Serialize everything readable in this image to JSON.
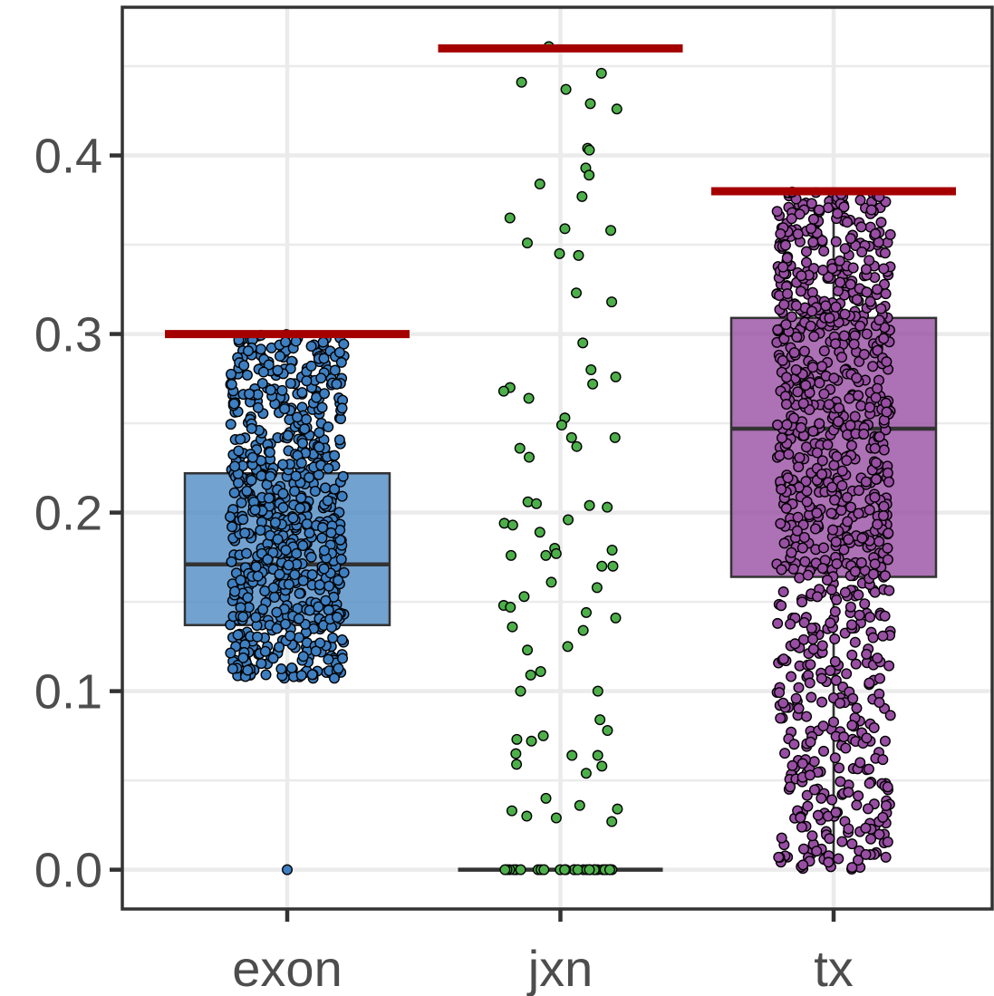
{
  "chart_data": {
    "type": "boxplot",
    "categories": [
      "exon",
      "jxn",
      "tx"
    ],
    "ylim": [
      -0.022,
      0.483
    ],
    "yticks": [
      0.0,
      0.1,
      0.2,
      0.3,
      0.4
    ],
    "ytick_labels": [
      "0.0",
      "0.1",
      "0.2",
      "0.3",
      "0.4"
    ],
    "grid": true,
    "legend": "none",
    "cutoff_color": "#a50000",
    "groups": [
      {
        "category": "exon",
        "box_fill": "#4f8bc4",
        "point_fill": "#3d7fc1",
        "box": {
          "q1": 0.137,
          "median": 0.171,
          "q3": 0.222,
          "whisker_low": 0.137,
          "whisker_high": 0.222
        },
        "cutoff": 0.3,
        "points_range": [
          0.105,
          0.3
        ],
        "n_points": 700,
        "outlier_points": [
          0.0
        ]
      },
      {
        "category": "jxn",
        "box_fill": "#4daf4a",
        "point_fill": "#4daf4a",
        "box": {
          "q1": 0.0,
          "median": 0.0,
          "q3": 0.0,
          "whisker_low": 0.0,
          "whisker_high": 0.0
        },
        "cutoff": 0.46,
        "zero_points": 28,
        "points": [
          0.461,
          0.446,
          0.441,
          0.437,
          0.429,
          0.426,
          0.404,
          0.403,
          0.393,
          0.389,
          0.384,
          0.377,
          0.365,
          0.359,
          0.358,
          0.351,
          0.345,
          0.344,
          0.323,
          0.318,
          0.295,
          0.28,
          0.276,
          0.272,
          0.27,
          0.268,
          0.264,
          0.253,
          0.249,
          0.242,
          0.242,
          0.237,
          0.236,
          0.231,
          0.206,
          0.205,
          0.204,
          0.203,
          0.196,
          0.194,
          0.193,
          0.189,
          0.18,
          0.179,
          0.177,
          0.176,
          0.176,
          0.17,
          0.17,
          0.161,
          0.158,
          0.153,
          0.148,
          0.147,
          0.144,
          0.141,
          0.136,
          0.134,
          0.125,
          0.123,
          0.111,
          0.109,
          0.1,
          0.1,
          0.084,
          0.078,
          0.075,
          0.073,
          0.072,
          0.065,
          0.064,
          0.064,
          0.059,
          0.058,
          0.054,
          0.04,
          0.036,
          0.034,
          0.033,
          0.03,
          0.029,
          0.027
        ]
      },
      {
        "category": "tx",
        "box_fill": "#984ea3",
        "point_fill": "#984ea3",
        "box": {
          "q1": 0.164,
          "median": 0.247,
          "q3": 0.309,
          "whisker_low": 0.0,
          "whisker_high": 0.38
        },
        "cutoff": 0.38,
        "points_range": [
          0.0,
          0.38
        ],
        "n_points": 950
      }
    ]
  }
}
